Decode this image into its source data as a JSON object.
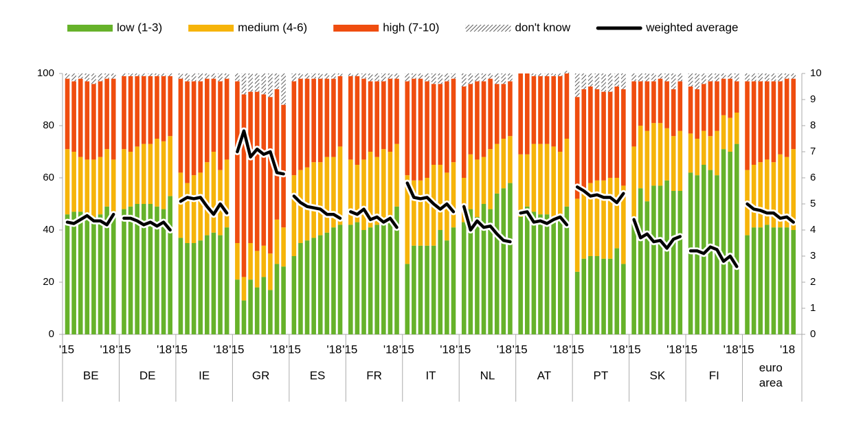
{
  "chart_data": {
    "type": "bar",
    "stacked": true,
    "legend_position": "top",
    "groups": [
      "BE",
      "DE",
      "IE",
      "GR",
      "ES",
      "FR",
      "IT",
      "NL",
      "AT",
      "PT",
      "SK",
      "FI",
      "euro area"
    ],
    "periods": [
      "'15",
      null,
      null,
      null,
      null,
      null,
      "'18",
      null
    ],
    "ylim": [
      0,
      100
    ],
    "yticks": [
      0,
      20,
      40,
      60,
      80,
      100
    ],
    "y2lim": [
      0,
      10
    ],
    "y2ticks": [
      0,
      1,
      2,
      3,
      4,
      5,
      6,
      7,
      8,
      9,
      10
    ],
    "series": [
      {
        "name": "low (1-3)",
        "color": "#66b22a",
        "values": [
          [
            46,
            47,
            47,
            46,
            45,
            46,
            49,
            46
          ],
          [
            48,
            49,
            50,
            50,
            50,
            49,
            48,
            53
          ],
          [
            37,
            35,
            35,
            36,
            38,
            39,
            38,
            41
          ],
          [
            21,
            13,
            21,
            18,
            22,
            17,
            27,
            26
          ],
          [
            30,
            35,
            36,
            37,
            38,
            39,
            41,
            42
          ],
          [
            42,
            43,
            40,
            41,
            42,
            42,
            44,
            49
          ],
          [
            27,
            34,
            34,
            34,
            34,
            40,
            36,
            41
          ],
          [
            43,
            48,
            45,
            50,
            48,
            54,
            56,
            58
          ],
          [
            45,
            49,
            47,
            46,
            46,
            45,
            45,
            49
          ],
          [
            24,
            29,
            30,
            30,
            29,
            29,
            33,
            27
          ],
          [
            44,
            56,
            51,
            57,
            57,
            59,
            55,
            55
          ],
          [
            62,
            61,
            65,
            63,
            61,
            71,
            70,
            73
          ],
          [
            38,
            41,
            41,
            42,
            41,
            41,
            41,
            40
          ]
        ]
      },
      {
        "name": "medium (4-6)",
        "color": "#f6b40a",
        "values": [
          [
            25,
            23,
            21,
            21,
            22,
            22,
            22,
            21
          ],
          [
            23,
            21,
            22,
            23,
            23,
            26,
            26,
            23
          ],
          [
            25,
            23,
            26,
            26,
            28,
            31,
            25,
            26
          ],
          [
            14,
            9,
            14,
            14,
            12,
            14,
            17,
            15
          ],
          [
            31,
            28,
            28,
            29,
            28,
            29,
            27,
            30
          ],
          [
            25,
            22,
            27,
            29,
            26,
            29,
            26,
            24
          ],
          [
            34,
            25,
            25,
            26,
            31,
            25,
            26,
            25
          ],
          [
            17,
            21,
            22,
            18,
            23,
            19,
            19,
            18
          ],
          [
            24,
            20,
            26,
            27,
            27,
            27,
            25,
            26
          ],
          [
            28,
            26,
            28,
            29,
            30,
            31,
            27,
            30
          ],
          [
            28,
            24,
            27,
            24,
            24,
            20,
            21,
            23
          ],
          [
            15,
            14,
            13,
            13,
            17,
            13,
            13,
            12
          ],
          [
            25,
            24,
            25,
            25,
            25,
            28,
            27,
            31
          ]
        ]
      },
      {
        "name": "high (7-10)",
        "color": "#ef4d0f",
        "values": [
          [
            27,
            27,
            30,
            30,
            29,
            29,
            27,
            31
          ],
          [
            28,
            29,
            27,
            26,
            26,
            24,
            25,
            23
          ],
          [
            36,
            39,
            36,
            35,
            32,
            28,
            34,
            31
          ],
          [
            62,
            70,
            58,
            61,
            58,
            60,
            50,
            47
          ],
          [
            36,
            35,
            34,
            32,
            32,
            30,
            30,
            27
          ],
          [
            32,
            34,
            31,
            27,
            29,
            26,
            28,
            25
          ],
          [
            36,
            39,
            39,
            37,
            31,
            31,
            35,
            32
          ],
          [
            35,
            27,
            30,
            29,
            27,
            23,
            21,
            21
          ],
          [
            31,
            31,
            26,
            26,
            26,
            27,
            29,
            25
          ],
          [
            39,
            39,
            37,
            35,
            34,
            33,
            35,
            37
          ],
          [
            25,
            17,
            19,
            16,
            17,
            18,
            18,
            19
          ],
          [
            18,
            19,
            18,
            21,
            19,
            14,
            15,
            12
          ],
          [
            34,
            32,
            31,
            30,
            31,
            28,
            30,
            27
          ]
        ]
      },
      {
        "name": "don't know",
        "color": "#333333",
        "pattern": "diagonal-hatch",
        "values": [
          [
            2,
            3,
            2,
            3,
            4,
            3,
            2,
            2
          ],
          [
            1,
            1,
            1,
            1,
            1,
            1,
            1,
            1
          ],
          [
            2,
            3,
            3,
            3,
            2,
            2,
            3,
            2
          ],
          [
            3,
            8,
            7,
            7,
            8,
            9,
            6,
            12
          ],
          [
            3,
            2,
            2,
            2,
            2,
            2,
            2,
            1
          ],
          [
            1,
            1,
            2,
            3,
            3,
            3,
            2,
            2
          ],
          [
            3,
            2,
            2,
            3,
            4,
            4,
            3,
            2
          ],
          [
            5,
            4,
            3,
            3,
            2,
            4,
            4,
            3
          ],
          [
            0,
            0,
            1,
            1,
            1,
            1,
            1,
            1
          ],
          [
            9,
            6,
            5,
            6,
            7,
            7,
            5,
            6
          ],
          [
            3,
            3,
            3,
            3,
            2,
            3,
            6,
            3
          ],
          [
            5,
            6,
            4,
            3,
            3,
            2,
            2,
            3
          ],
          [
            3,
            3,
            3,
            3,
            3,
            3,
            2,
            2
          ]
        ]
      },
      {
        "name": "weighted average",
        "type": "line",
        "axis": "y2",
        "color": "#000000",
        "values": [
          [
            4.3,
            4.25,
            4.4,
            4.55,
            4.35,
            4.35,
            4.2,
            4.6
          ],
          [
            4.45,
            4.45,
            4.35,
            4.2,
            4.3,
            4.15,
            4.3,
            4.0
          ],
          [
            5.1,
            5.25,
            5.2,
            5.25,
            4.9,
            4.6,
            5.0,
            4.65
          ],
          [
            7.0,
            7.8,
            6.8,
            7.1,
            6.9,
            7.0,
            6.2,
            6.15
          ],
          [
            5.3,
            5.05,
            4.9,
            4.85,
            4.8,
            4.6,
            4.6,
            4.45
          ],
          [
            4.7,
            4.6,
            4.8,
            4.4,
            4.5,
            4.3,
            4.45,
            4.1
          ],
          [
            5.8,
            5.25,
            5.2,
            5.25,
            5.0,
            4.8,
            5.0,
            4.7
          ],
          [
            4.9,
            4.0,
            4.35,
            4.1,
            4.15,
            3.85,
            3.6,
            3.55
          ],
          [
            4.65,
            4.7,
            4.3,
            4.35,
            4.25,
            4.4,
            4.5,
            4.2
          ],
          [
            5.65,
            5.5,
            5.3,
            5.35,
            5.25,
            5.25,
            5.05,
            5.4
          ],
          [
            4.4,
            3.7,
            3.85,
            3.55,
            3.6,
            3.3,
            3.65,
            3.75
          ],
          [
            3.2,
            3.2,
            3.1,
            3.35,
            3.25,
            2.8,
            3.0,
            2.6
          ],
          [
            5.0,
            4.8,
            4.75,
            4.65,
            4.65,
            4.45,
            4.5,
            4.3
          ]
        ]
      }
    ]
  }
}
